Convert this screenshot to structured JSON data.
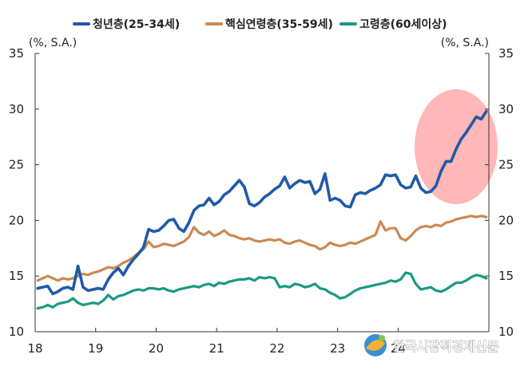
{
  "chart_data": {
    "type": "line",
    "title": "",
    "unit_left": "(%, S.A.)",
    "unit_right": "(%, S.A.)",
    "x_tick_labels": [
      "18",
      "19",
      "20",
      "21",
      "22",
      "23",
      "24"
    ],
    "x_start": 2018.0,
    "x_step_months": 1,
    "ylim": [
      10,
      35
    ],
    "yticks": [
      10,
      15,
      20,
      25,
      30,
      35
    ],
    "grid": false,
    "legend_position": "top",
    "series": [
      {
        "name": "청년층(25-34세)",
        "color": "#1f5aa8",
        "values": [
          13.9,
          14.0,
          14.1,
          13.4,
          13.6,
          13.9,
          14.0,
          13.8,
          15.9,
          14.0,
          13.7,
          13.8,
          13.9,
          13.8,
          14.7,
          15.3,
          15.7,
          15.1,
          15.9,
          16.5,
          17.0,
          17.6,
          19.2,
          19.0,
          19.1,
          19.5,
          20.0,
          20.1,
          19.3,
          19.0,
          19.8,
          20.9,
          21.3,
          21.4,
          22.0,
          21.4,
          21.7,
          22.3,
          22.6,
          23.1,
          23.6,
          23.0,
          21.5,
          21.3,
          21.6,
          22.1,
          22.4,
          22.8,
          23.1,
          23.9,
          22.9,
          23.3,
          23.6,
          23.4,
          23.5,
          22.4,
          22.8,
          24.2,
          21.8,
          22.0,
          21.8,
          21.3,
          21.2,
          22.3,
          22.5,
          22.4,
          22.7,
          22.9,
          23.2,
          24.1,
          24.0,
          24.1,
          23.2,
          22.9,
          23.0,
          24.0,
          22.9,
          22.5,
          22.6,
          23.1,
          24.4,
          25.3,
          25.3,
          26.4,
          27.3,
          27.9,
          28.6,
          29.3,
          29.1,
          29.8
        ]
      },
      {
        "name": "핵심연령층(35-59세)",
        "color": "#c98a55",
        "values": [
          14.6,
          14.8,
          15.0,
          14.8,
          14.6,
          14.8,
          14.7,
          14.8,
          15.0,
          15.2,
          15.1,
          15.3,
          15.4,
          15.6,
          15.8,
          15.7,
          15.9,
          16.2,
          16.4,
          16.7,
          17.1,
          17.4,
          18.1,
          17.6,
          17.7,
          17.9,
          17.8,
          17.7,
          17.9,
          18.1,
          18.5,
          19.4,
          18.9,
          18.7,
          19.0,
          18.6,
          18.8,
          19.1,
          18.7,
          18.6,
          18.4,
          18.3,
          18.4,
          18.2,
          18.1,
          18.2,
          18.3,
          18.2,
          18.3,
          18.0,
          17.9,
          18.1,
          18.2,
          18.0,
          17.8,
          17.7,
          17.4,
          17.6,
          18.0,
          17.8,
          17.7,
          17.8,
          18.0,
          17.9,
          18.1,
          18.3,
          18.5,
          18.7,
          19.9,
          19.1,
          19.3,
          19.3,
          18.4,
          18.2,
          18.6,
          19.1,
          19.4,
          19.5,
          19.4,
          19.6,
          19.5,
          19.8,
          19.9,
          20.1,
          20.2,
          20.3,
          20.4,
          20.3,
          20.4,
          20.3
        ]
      },
      {
        "name": "고령층(60세이상)",
        "color": "#1a9a80",
        "values": [
          12.1,
          12.2,
          12.4,
          12.2,
          12.5,
          12.6,
          12.7,
          13.0,
          12.6,
          12.4,
          12.5,
          12.6,
          12.5,
          12.8,
          13.3,
          12.9,
          13.2,
          13.3,
          13.5,
          13.7,
          13.8,
          13.7,
          13.9,
          13.9,
          13.8,
          13.9,
          13.7,
          13.6,
          13.8,
          13.9,
          14.0,
          14.1,
          14.0,
          14.2,
          14.3,
          14.1,
          14.4,
          14.3,
          14.5,
          14.6,
          14.7,
          14.7,
          14.8,
          14.6,
          14.9,
          14.8,
          14.9,
          14.8,
          14.0,
          14.1,
          14.0,
          14.3,
          14.2,
          14.0,
          14.1,
          14.3,
          13.9,
          13.8,
          13.5,
          13.3,
          13.0,
          13.1,
          13.4,
          13.7,
          13.9,
          14.0,
          14.1,
          14.2,
          14.3,
          14.4,
          14.6,
          14.5,
          14.7,
          15.3,
          15.2,
          14.3,
          13.8,
          13.9,
          14.0,
          13.7,
          13.6,
          13.8,
          14.1,
          14.4,
          14.4,
          14.6,
          14.9,
          15.1,
          15.0,
          14.8
        ]
      }
    ],
    "highlight": {
      "shape": "ellipse",
      "color": "#ff7b7b",
      "x_from": "2024-10 region",
      "note": ""
    }
  },
  "watermark": {
    "text": "한국시장적경제신문",
    "icon": "globe-logo-icon"
  }
}
